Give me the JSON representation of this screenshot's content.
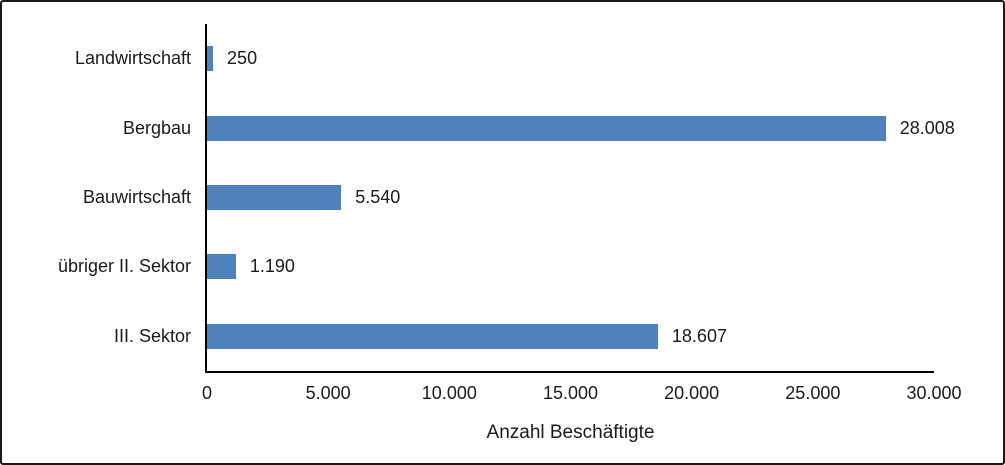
{
  "chart_data": {
    "type": "bar",
    "orientation": "horizontal",
    "categories": [
      "Landwirtschaft",
      "Bergbau",
      "Bauwirtschaft",
      "übriger II. Sektor",
      "III. Sektor"
    ],
    "values": [
      250,
      28008,
      5540,
      1190,
      18607
    ],
    "value_labels": [
      "250",
      "28.008",
      "5.540",
      "1.190",
      "18.607"
    ],
    "title": "",
    "xlabel": "Anzahl Beschäftigte",
    "ylabel": "",
    "xlim": [
      0,
      30000
    ],
    "x_tick_labels": [
      "0",
      "5.000",
      "10.000",
      "15.000",
      "20.000",
      "25.000",
      "30.000"
    ],
    "grid": false,
    "legend": false,
    "bar_color": "#4f81bd",
    "axis_color": "#000000"
  }
}
